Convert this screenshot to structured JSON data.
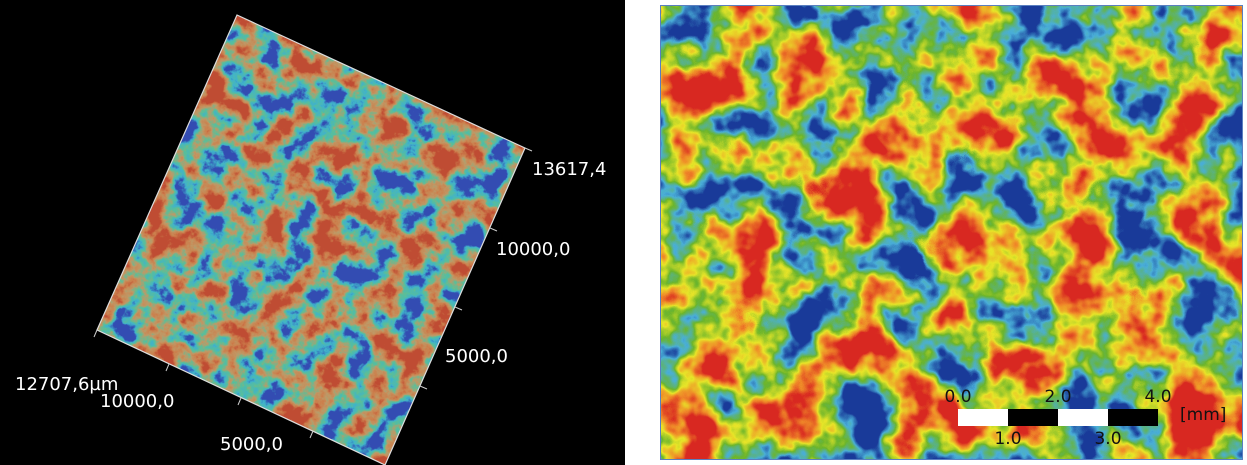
{
  "left_view": {
    "axis_labels": [
      "13617,4",
      "10000,0",
      "5000,0",
      "12707,6µm",
      "10000,0",
      "5000,0"
    ]
  },
  "right_view": {
    "scale_bar": {
      "top_labels": [
        "0.0",
        "2.0",
        "4.0"
      ],
      "bottom_labels": [
        "1.0",
        "3.0"
      ],
      "unit": "[mm]"
    }
  }
}
